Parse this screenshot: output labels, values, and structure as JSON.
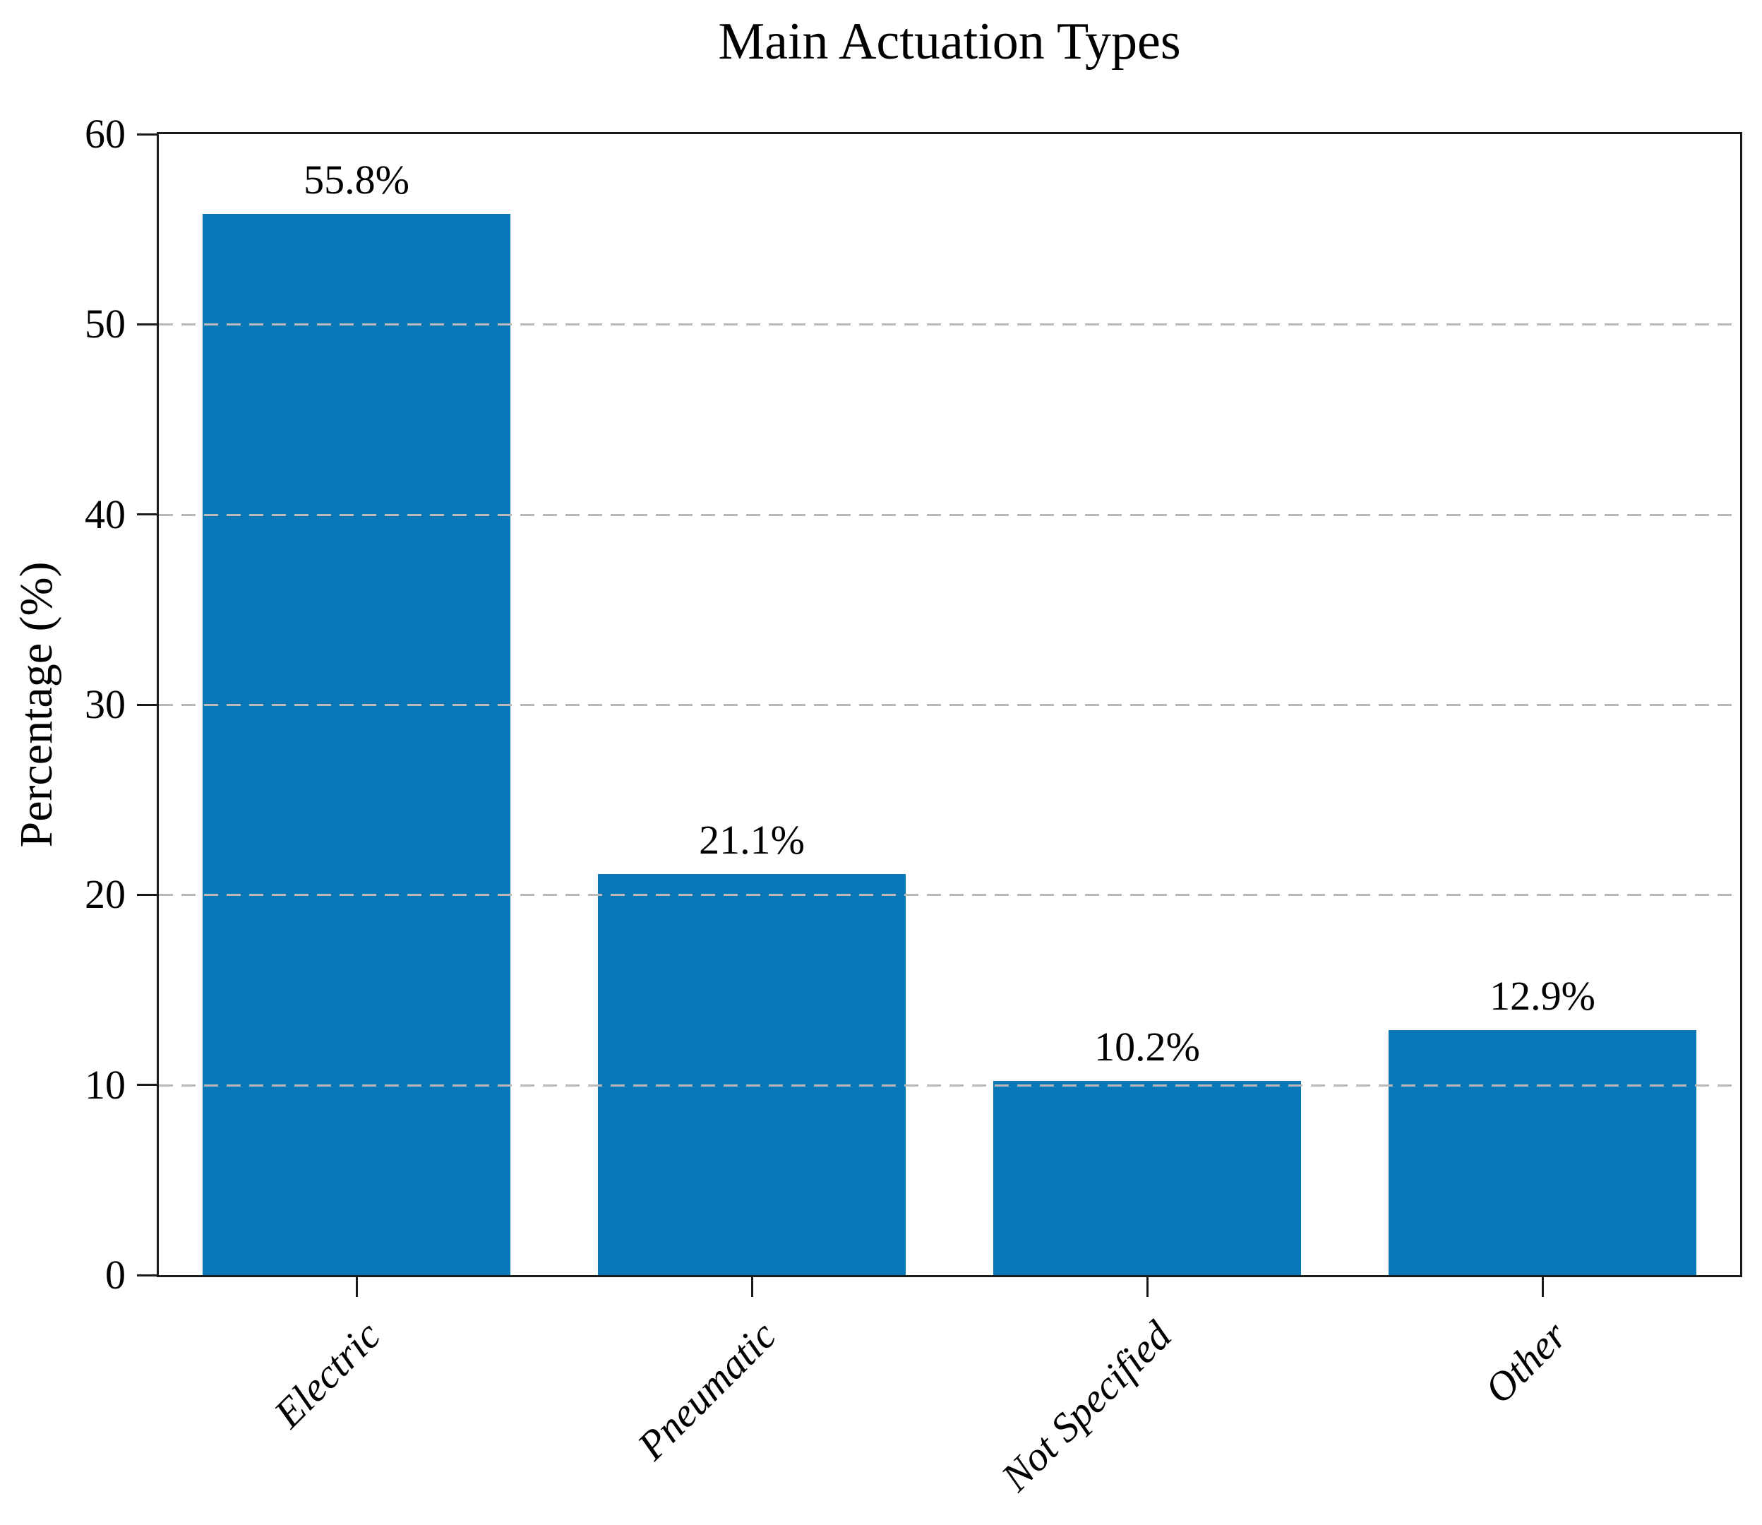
{
  "chart_data": {
    "type": "bar",
    "title": "Main Actuation Types",
    "xlabel": "",
    "ylabel": "Percentage (%)",
    "categories": [
      "Electric",
      "Pneumatic",
      "Not Specified",
      "Other"
    ],
    "values": [
      55.8,
      21.1,
      10.2,
      12.9
    ],
    "value_labels": [
      "55.8%",
      "21.1%",
      "10.2%",
      "12.9%"
    ],
    "ylim": [
      0,
      60
    ],
    "yticks": [
      0,
      10,
      20,
      30,
      40,
      50,
      60
    ],
    "grid": "horizontal dashed gridlines at 10,20,30,40,50 drawn over bars",
    "legend_position": "none",
    "bar_width_fraction": 0.8,
    "x_tick_label_rotation_deg": 45,
    "x_tick_label_style": "italic",
    "bar_color": "#0a77b8",
    "grid_color": "#b9b9b9",
    "axis_color": "#1a1a1a",
    "text_color": "#000000",
    "background_color": "#ffffff"
  }
}
